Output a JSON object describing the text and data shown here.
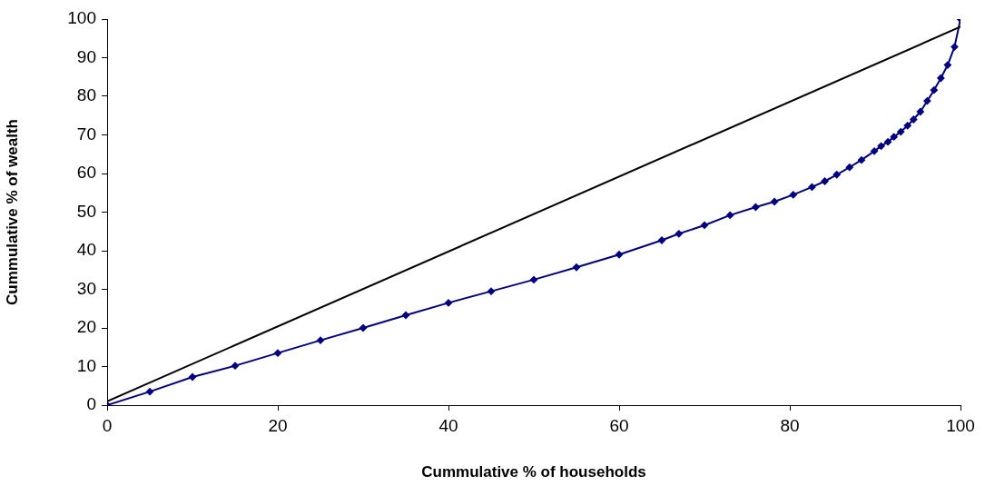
{
  "chart_data": {
    "type": "line",
    "xlabel": "Cummulative % of households",
    "ylabel": "Cummulative % of wealth",
    "xlim": [
      0,
      100
    ],
    "xticks": [
      0,
      20,
      40,
      60,
      80,
      100
    ],
    "ylim": [
      0,
      100
    ],
    "yticks": [
      0,
      10,
      20,
      30,
      40,
      50,
      60,
      70,
      80,
      90,
      100
    ],
    "grid": false,
    "legend": false,
    "series": [
      {
        "color": "#000000",
        "marker": "none",
        "x": [
          0,
          100
        ],
        "values": [
          1,
          98
        ]
      },
      {
        "color": "#000080",
        "marker": "diamond",
        "x": [
          0,
          5,
          10,
          15,
          20,
          25,
          30,
          35,
          40,
          45,
          50,
          55,
          60,
          65,
          67,
          70,
          73,
          76,
          78.2,
          80.4,
          82.6,
          84.1,
          85.5,
          87,
          88.4,
          89.9,
          90.7,
          91.5,
          92.2,
          93,
          93.8,
          94.5,
          95.3,
          96.1,
          96.9,
          97.7,
          98.5,
          99.3,
          100
        ],
        "values": [
          0,
          3.5,
          7.3,
          10.2,
          13.5,
          16.8,
          20,
          23.3,
          26.5,
          29.5,
          32.5,
          35.7,
          39,
          42.7,
          44.4,
          46.6,
          49.2,
          51.3,
          52.7,
          54.5,
          56.5,
          58,
          59.7,
          61.6,
          63.5,
          65.8,
          67.1,
          68.2,
          69.5,
          70.8,
          72.4,
          74,
          76,
          78.8,
          81.6,
          84.7,
          88.1,
          92.8,
          100
        ]
      }
    ]
  }
}
